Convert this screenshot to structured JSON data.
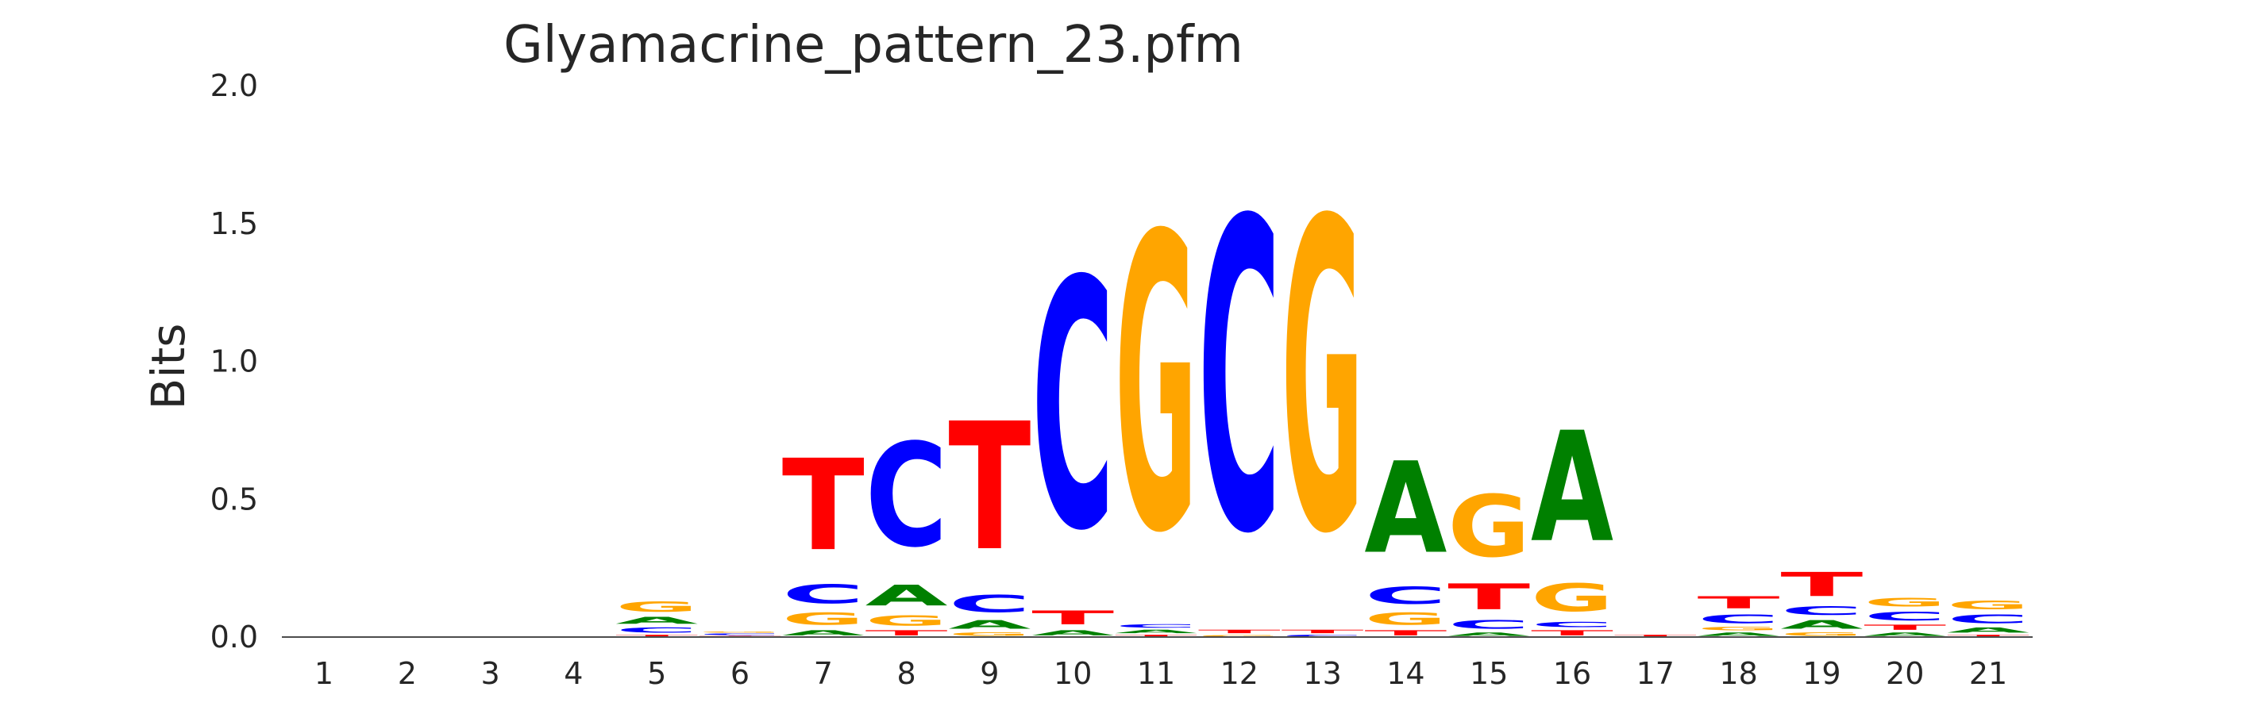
{
  "chart_data": {
    "type": "sequence-logo",
    "title": "Glyamacrine_pattern_23.pfm",
    "xlabel": "",
    "ylabel": "Bits",
    "ylim": [
      0,
      2.0
    ],
    "yticks": [
      "0.0",
      "0.5",
      "1.0",
      "1.5",
      "2.0"
    ],
    "positions": [
      "1",
      "2",
      "3",
      "4",
      "5",
      "6",
      "7",
      "8",
      "9",
      "10",
      "11",
      "12",
      "13",
      "14",
      "15",
      "16",
      "17",
      "18",
      "19",
      "20",
      "21"
    ],
    "colors": {
      "A": "#008000",
      "C": "#0000ff",
      "G": "#ffa500",
      "T": "#ff0000"
    },
    "columns": [
      [],
      [],
      [],
      [],
      [
        [
          "T",
          0.01
        ],
        [
          "C",
          0.03
        ],
        [
          "A",
          0.04
        ],
        [
          "G",
          0.06
        ]
      ],
      [
        [
          "T",
          0.005
        ],
        [
          "C",
          0.01
        ],
        [
          "G",
          0.005
        ]
      ],
      [
        [
          "A",
          0.03
        ],
        [
          "G",
          0.07
        ],
        [
          "C",
          0.11
        ],
        [
          "T",
          0.53
        ]
      ],
      [
        [
          "T",
          0.03
        ],
        [
          "G",
          0.06
        ],
        [
          "A",
          0.12
        ],
        [
          "C",
          0.6
        ]
      ],
      [
        [
          "G",
          0.02
        ],
        [
          "A",
          0.05
        ],
        [
          "C",
          0.1
        ],
        [
          "T",
          0.74
        ]
      ],
      [
        [
          "A",
          0.03
        ],
        [
          "T",
          0.08
        ],
        [
          "C",
          1.44
        ]
      ],
      [
        [
          "T",
          0.01
        ],
        [
          "A",
          0.02
        ],
        [
          "C",
          0.02
        ],
        [
          "G",
          1.71
        ]
      ],
      [
        [
          "G",
          0.01
        ],
        [
          "T",
          0.02
        ],
        [
          "C",
          1.8
        ]
      ],
      [
        [
          "C",
          0.01
        ],
        [
          "T",
          0.02
        ],
        [
          "G",
          1.8
        ]
      ],
      [
        [
          "T",
          0.03
        ],
        [
          "G",
          0.07
        ],
        [
          "C",
          0.1
        ],
        [
          "A",
          0.53
        ]
      ],
      [
        [
          "A",
          0.02
        ],
        [
          "C",
          0.05
        ],
        [
          "T",
          0.15
        ],
        [
          "G",
          0.36
        ]
      ],
      [
        [
          "T",
          0.03
        ],
        [
          "C",
          0.03
        ],
        [
          "G",
          0.16
        ],
        [
          "A",
          0.64
        ]
      ],
      [
        [
          "T",
          0.01
        ]
      ],
      [
        [
          "A",
          0.02
        ],
        [
          "G",
          0.02
        ],
        [
          "C",
          0.05
        ],
        [
          "T",
          0.07
        ]
      ],
      [
        [
          "G",
          0.02
        ],
        [
          "A",
          0.05
        ],
        [
          "C",
          0.05
        ],
        [
          "T",
          0.14
        ]
      ],
      [
        [
          "A",
          0.02
        ],
        [
          "T",
          0.03
        ],
        [
          "C",
          0.05
        ],
        [
          "G",
          0.05
        ]
      ],
      [
        [
          "T",
          0.01
        ],
        [
          "A",
          0.03
        ],
        [
          "C",
          0.05
        ],
        [
          "G",
          0.05
        ]
      ]
    ]
  }
}
